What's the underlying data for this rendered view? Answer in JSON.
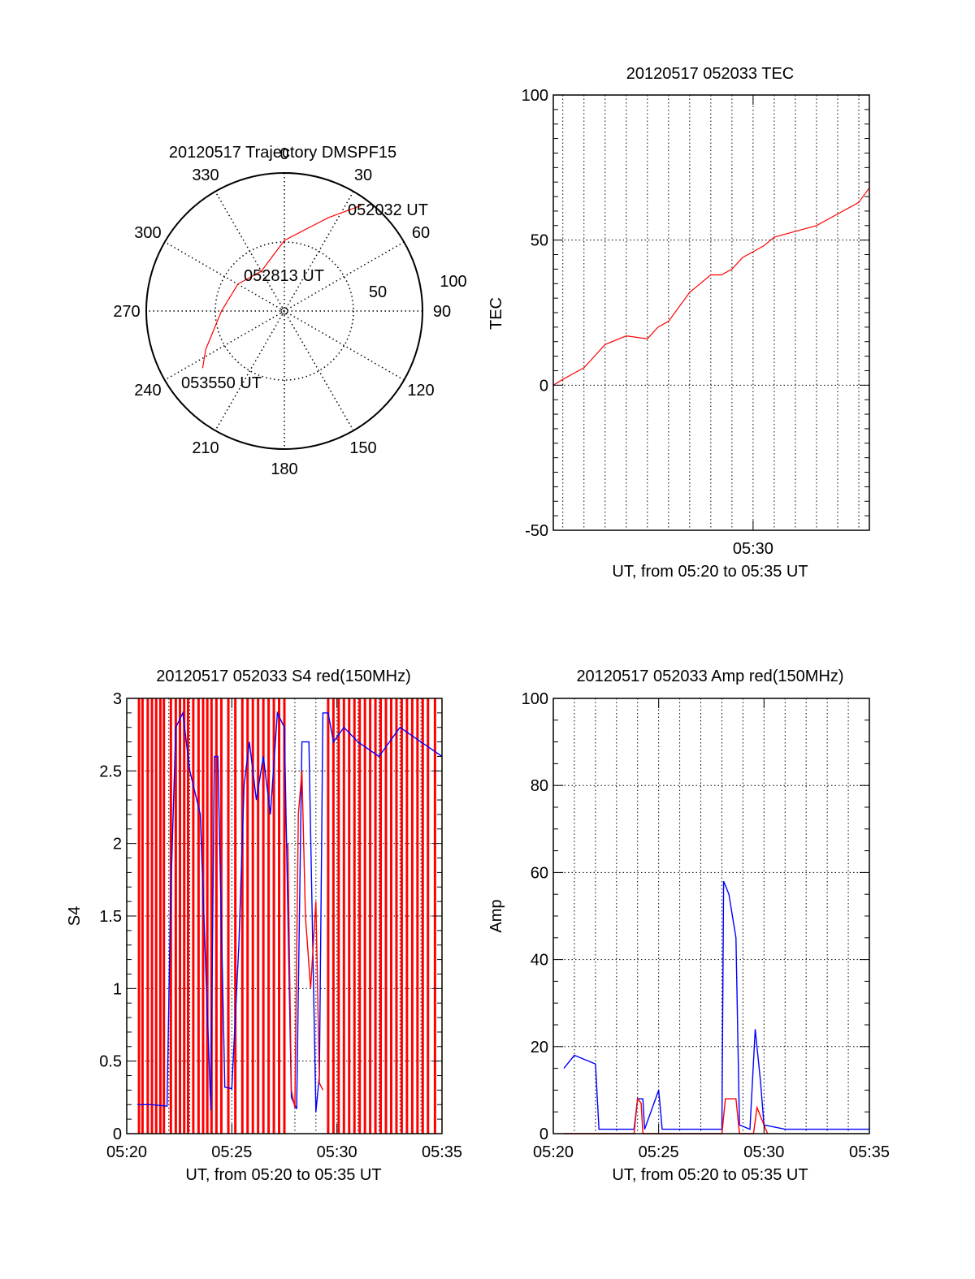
{
  "colors": {
    "red_series": "#ff0000",
    "blue_series": "#0000ff",
    "axis": "#000000",
    "grid": "#000000"
  },
  "chart_data": [
    {
      "id": "trajectory",
      "type": "polar-line",
      "title": "20120517 Trajectory DMSPF15",
      "angle_labels": [
        "0",
        "30",
        "60",
        "90",
        "120",
        "150",
        "180",
        "210",
        "240",
        "270",
        "300",
        "330"
      ],
      "radial_labels": [
        "50",
        "100"
      ],
      "radial_range": [
        0,
        100
      ],
      "grid": true,
      "annotations": [
        "052032 UT",
        "052813 UT",
        "053550 UT"
      ],
      "series": [
        {
          "color": "#ff0000",
          "points_az_el": [
            [
              36,
              5
            ],
            [
              25,
              23
            ],
            [
              0,
              44
            ],
            [
              -30,
              60
            ],
            [
              -60,
              55
            ],
            [
              -90,
              49
            ],
            [
              -116,
              33
            ],
            [
              -125,
              25
            ]
          ]
        }
      ]
    },
    {
      "id": "tec",
      "type": "line",
      "title": "20120517 052033 TEC",
      "ylabel": "TEC",
      "xlabel": "UT, from 05:20 to 05:35 UT",
      "x_tick_labels": [
        "05:30"
      ],
      "y_ticks": [
        -50,
        0,
        50,
        100
      ],
      "xlim": [
        "05:20:33",
        "05:35:30"
      ],
      "ylim": [
        -50,
        100
      ],
      "grid": true,
      "series": [
        {
          "color": "#ff0000",
          "x": [
            "05:20:33",
            "05:21:00",
            "05:21:30",
            "05:22:00",
            "05:22:30",
            "05:23:00",
            "05:24:00",
            "05:25:00",
            "05:25:30",
            "05:26:00",
            "05:26:30",
            "05:27:00",
            "05:27:30",
            "05:28:00",
            "05:28:30",
            "05:29:00",
            "05:29:30",
            "05:30:00",
            "05:30:30",
            "05:31:00",
            "05:32:00",
            "05:33:00",
            "05:34:00",
            "05:35:00",
            "05:35:30"
          ],
          "y": [
            0,
            2,
            4,
            6,
            10,
            14,
            17,
            16,
            20,
            22,
            27,
            32,
            35,
            38,
            38,
            40,
            44,
            46,
            48,
            51,
            53,
            55,
            59,
            63,
            68
          ]
        }
      ]
    },
    {
      "id": "s4",
      "type": "line",
      "title": "20120517 052033 S4 red(150MHz)",
      "ylabel": "S4",
      "xlabel": "UT, from 05:20 to 05:35 UT",
      "x_tick_labels": [
        "05:20",
        "05:25",
        "05:30",
        "05:35"
      ],
      "y_tick_labels": [
        "0",
        "0.5",
        "1",
        "1.5",
        "2",
        "2.5",
        "3"
      ],
      "xlim": [
        "05:20",
        "05:35"
      ],
      "ylim": [
        0,
        3
      ],
      "grid": true,
      "spike_color": "#ff0000",
      "spike_times": [
        "05:20:35",
        "05:20:45",
        "05:21:00",
        "05:21:12",
        "05:21:24",
        "05:21:36",
        "05:21:46",
        "05:22:06",
        "05:22:20",
        "05:22:32",
        "05:22:44",
        "05:22:55",
        "05:23:10",
        "05:23:25",
        "05:23:38",
        "05:23:50",
        "05:24:02",
        "05:24:16",
        "05:24:30",
        "05:24:50",
        "05:25:10",
        "05:25:30",
        "05:25:45",
        "05:26:00",
        "05:26:15",
        "05:26:30",
        "05:26:45",
        "05:27:00",
        "05:27:15",
        "05:27:30",
        "05:29:35",
        "05:29:50",
        "05:30:05",
        "05:30:20",
        "05:30:35",
        "05:30:50",
        "05:31:05",
        "05:31:20",
        "05:31:35",
        "05:31:50",
        "05:32:05",
        "05:32:20",
        "05:32:35",
        "05:32:50",
        "05:33:05",
        "05:33:20",
        "05:33:35",
        "05:33:50",
        "05:34:05",
        "05:34:20",
        "05:34:40"
      ],
      "series": [
        {
          "color": "#0000ff",
          "x": [
            "05:20:30",
            "05:21:10",
            "05:21:55",
            "05:22:05",
            "05:22:20",
            "05:22:40",
            "05:23:00",
            "05:23:30",
            "05:24:00",
            "05:24:10",
            "05:24:20",
            "05:24:40",
            "05:25:00",
            "05:25:20",
            "05:25:35",
            "05:25:50",
            "05:26:10",
            "05:26:30",
            "05:26:50",
            "05:27:10",
            "05:27:30",
            "05:27:50",
            "05:28:05",
            "05:28:20",
            "05:28:40",
            "05:29:00",
            "05:29:10",
            "05:29:20",
            "05:29:35",
            "05:29:50",
            "05:30:20",
            "05:31:00",
            "05:32:00",
            "05:33:00",
            "05:34:00",
            "05:35:00"
          ],
          "y": [
            0.2,
            0.2,
            0.19,
            1.6,
            2.8,
            2.9,
            2.5,
            2.2,
            0.16,
            2.6,
            2.6,
            0.32,
            0.31,
            1.3,
            2.4,
            2.7,
            2.3,
            2.6,
            2.2,
            2.9,
            2.8,
            0.25,
            0.17,
            2.7,
            2.7,
            0.15,
            0.4,
            2.9,
            2.9,
            2.7,
            2.8,
            2.7,
            2.6,
            2.8,
            2.7,
            2.6
          ]
        },
        {
          "color": "#ff0000",
          "x": [
            "05:27:40",
            "05:27:50",
            "05:28:00",
            "05:28:10",
            "05:28:20",
            "05:28:30",
            "05:28:45",
            "05:29:00",
            "05:29:10",
            "05:29:20"
          ],
          "y": [
            2.0,
            0.3,
            0.18,
            2.2,
            2.5,
            1.5,
            1.0,
            1.6,
            0.35,
            0.3
          ]
        }
      ]
    },
    {
      "id": "amp",
      "type": "line",
      "title": "20120517 052033 Amp red(150MHz)",
      "ylabel": "Amp",
      "xlabel": "UT, from 05:20 to 05:35 UT",
      "x_tick_labels": [
        "05:20",
        "05:25",
        "05:30",
        "05:35"
      ],
      "y_ticks": [
        0,
        20,
        40,
        60,
        80,
        100
      ],
      "xlim": [
        "05:20",
        "05:35"
      ],
      "ylim": [
        0,
        100
      ],
      "grid": true,
      "series": [
        {
          "color": "#0000ff",
          "x": [
            "05:20:30",
            "05:21:00",
            "05:21:30",
            "05:22:00",
            "05:22:10",
            "05:23:00",
            "05:23:50",
            "05:24:00",
            "05:24:15",
            "05:24:20",
            "05:25:00",
            "05:25:10",
            "05:26:00",
            "05:27:00",
            "05:28:00",
            "05:28:05",
            "05:28:20",
            "05:28:40",
            "05:28:50",
            "05:29:20",
            "05:29:35",
            "05:29:50",
            "05:30:00",
            "05:31:00",
            "05:33:00",
            "05:35:00"
          ],
          "y": [
            15,
            18,
            17,
            16,
            1,
            1,
            1,
            8,
            8,
            1,
            10,
            1,
            1,
            1,
            1,
            58,
            55,
            45,
            2,
            1,
            24,
            12,
            2,
            1,
            1,
            1
          ]
        },
        {
          "color": "#ff0000",
          "x": [
            "05:20:30",
            "05:22:00",
            "05:23:50",
            "05:24:00",
            "05:24:10",
            "05:24:15",
            "05:28:00",
            "05:28:10",
            "05:28:40",
            "05:28:50",
            "05:29:30",
            "05:29:40",
            "05:30:00",
            "05:30:10"
          ],
          "y": [
            0,
            0,
            0,
            8,
            7,
            0,
            0,
            8,
            8,
            0,
            0,
            6,
            2,
            0
          ]
        }
      ]
    }
  ]
}
